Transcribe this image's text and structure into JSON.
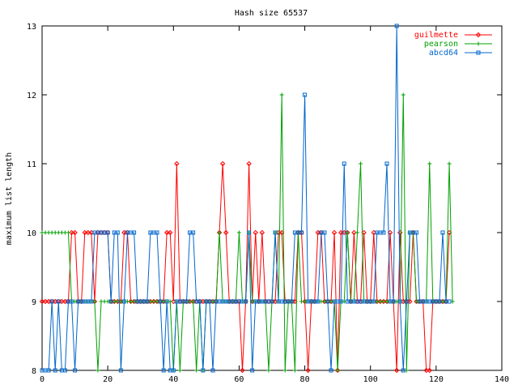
{
  "chart_data": {
    "type": "line",
    "title": "Hash size 65537",
    "xlabel": "",
    "ylabel": "maximum list length",
    "xlim": [
      0,
      140
    ],
    "ylim": [
      8,
      13
    ],
    "xticks": [
      0,
      20,
      40,
      60,
      80,
      100,
      120,
      140
    ],
    "yticks": [
      8,
      9,
      10,
      11,
      12,
      13
    ],
    "grid": false,
    "legend_position": "top-right",
    "series": [
      {
        "name": "guilmette",
        "color": "#ff0000",
        "marker": "diamond",
        "values": [
          9,
          9,
          9,
          9,
          9,
          9,
          9,
          9,
          9,
          10,
          10,
          9,
          9,
          10,
          10,
          10,
          9,
          10,
          10,
          10,
          10,
          9,
          9,
          9,
          9,
          10,
          10,
          9,
          9,
          9,
          9,
          9,
          9,
          9,
          9,
          9,
          9,
          9,
          10,
          10,
          9,
          11,
          9,
          9,
          9,
          9,
          9,
          9,
          9,
          9,
          9,
          9,
          9,
          9,
          10,
          11,
          10,
          9,
          9,
          9,
          9,
          8,
          9,
          11,
          9,
          10,
          9,
          10,
          9,
          9,
          9,
          9,
          10,
          10,
          9,
          9,
          9,
          9,
          10,
          10,
          9,
          8,
          9,
          9,
          10,
          10,
          9,
          9,
          9,
          10,
          8,
          10,
          10,
          10,
          9,
          10,
          9,
          9,
          10,
          9,
          9,
          10,
          9,
          9,
          9,
          9,
          10,
          9,
          8,
          10,
          9,
          9,
          9,
          10,
          9,
          9,
          9,
          8,
          8,
          9,
          9,
          9,
          9,
          9,
          10
        ]
      },
      {
        "name": "pearson",
        "color": "#00a000",
        "marker": "plus",
        "values": [
          10,
          10,
          10,
          10,
          10,
          10,
          10,
          10,
          10,
          9,
          9,
          9,
          9,
          9,
          9,
          9,
          9,
          8,
          9,
          9,
          9,
          9,
          9,
          9,
          9,
          9,
          9,
          9,
          9,
          9,
          9,
          9,
          9,
          9,
          9,
          9,
          9,
          9,
          9,
          9,
          8,
          9,
          8,
          9,
          9,
          9,
          9,
          8,
          9,
          8,
          9,
          9,
          9,
          9,
          10,
          9,
          9,
          9,
          9,
          9,
          10,
          9,
          9,
          10,
          9,
          9,
          9,
          9,
          9,
          8,
          9,
          10,
          9,
          12,
          8,
          9,
          9,
          8,
          10,
          9,
          9,
          9,
          9,
          9,
          9,
          9,
          9,
          9,
          9,
          9,
          8,
          9,
          9,
          10,
          9,
          9,
          10,
          11,
          9,
          9,
          9,
          9,
          9,
          9,
          9,
          9,
          9,
          9,
          9,
          9,
          12,
          8,
          10,
          10,
          9,
          9,
          9,
          9,
          11,
          9,
          9,
          9,
          9,
          9,
          11,
          9
        ]
      },
      {
        "name": "abcd64",
        "color": "#0066cc",
        "marker": "square",
        "values": [
          8,
          8,
          8,
          9,
          8,
          9,
          8,
          8,
          9,
          9,
          8,
          9,
          9,
          9,
          9,
          9,
          10,
          10,
          10,
          10,
          10,
          9,
          10,
          10,
          8,
          9,
          10,
          10,
          10,
          9,
          9,
          9,
          9,
          10,
          10,
          10,
          9,
          8,
          9,
          8,
          8,
          9,
          9,
          9,
          9,
          10,
          10,
          9,
          9,
          8,
          9,
          9,
          8,
          9,
          9,
          9,
          9,
          9,
          9,
          9,
          9,
          9,
          9,
          10,
          8,
          9,
          9,
          9,
          9,
          9,
          9,
          10,
          9,
          9,
          9,
          9,
          9,
          10,
          10,
          10,
          12,
          9,
          9,
          9,
          9,
          10,
          10,
          9,
          8,
          9,
          9,
          9,
          11,
          9,
          9,
          9,
          9,
          9,
          9,
          9,
          9,
          9,
          10,
          10,
          10,
          11,
          9,
          9,
          13,
          9,
          8,
          9,
          10,
          10,
          10,
          9,
          9,
          9,
          9,
          9,
          9,
          9,
          10,
          9,
          9
        ]
      }
    ]
  }
}
